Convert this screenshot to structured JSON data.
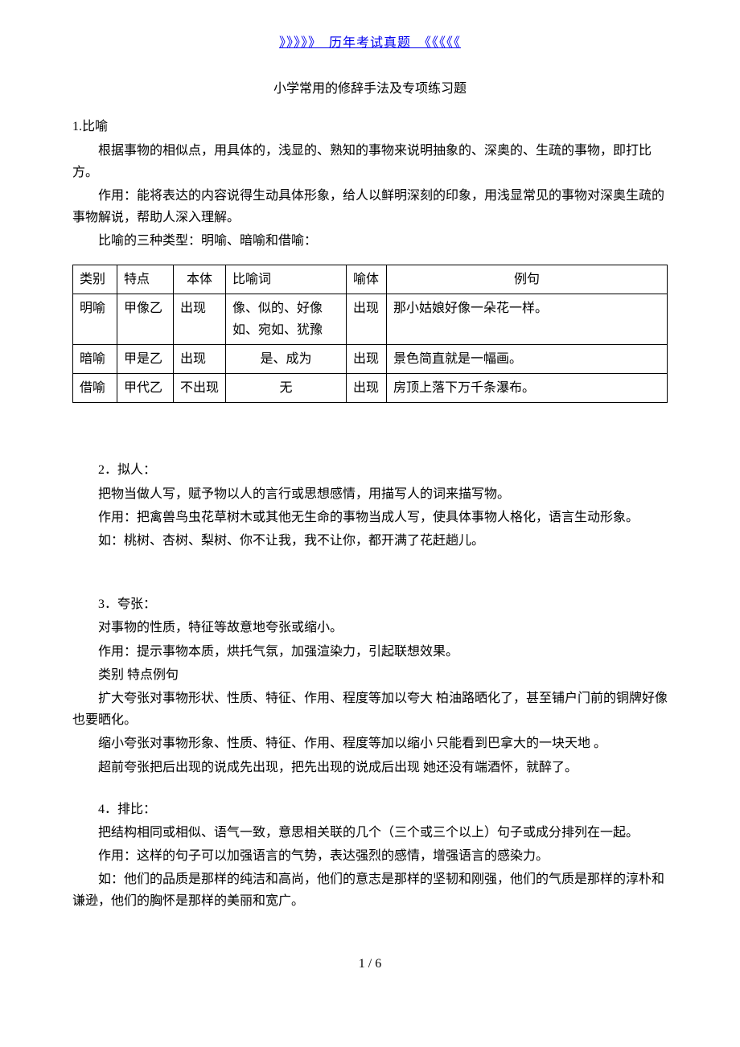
{
  "header": {
    "link_text": "》》》》》_历年考试真题_《《《《《"
  },
  "title": "小学常用的修辞手法及专项练习题",
  "section1": {
    "num": "1.比喻",
    "p1": "根据事物的相似点，用具体的，浅显的、熟知的事物来说明抽象的、深奥的、生疏的事物，即打比方。",
    "p2": "作用：能将表达的内容说得生动具体形象，给人以鲜明深刻的印象，用浅显常见的事物对深奥生疏的事物解说，帮助人深入理解。",
    "p3": "比喻的三种类型：明喻、暗喻和借喻："
  },
  "table": {
    "type": "table",
    "columns": [
      "类别",
      "特点",
      "本体",
      "比喻词",
      "喻体",
      "例句"
    ],
    "rows": [
      {
        "c1": "明喻",
        "c2": "甲像乙",
        "c3": "出现",
        "c4": "像、似的、好像如、宛如、犹豫",
        "c5": "出现",
        "c6": "那小姑娘好像一朵花一样。"
      },
      {
        "c1": "暗喻",
        "c2": "甲是乙",
        "c3": "出现",
        "c4": "是、成为",
        "c5": "出现",
        "c6": "景色简直就是一幅画。"
      },
      {
        "c1": "借喻",
        "c2": "甲代乙",
        "c3": "不出现",
        "c4": "无",
        "c5": "出现",
        "c6": "房顶上落下万千条瀑布。"
      }
    ]
  },
  "section2": {
    "num": "2．拟人：",
    "p1": "把物当做人写，赋予物以人的言行或思想感情，用描写人的词来描写物。",
    "p2": "作用：把禽兽鸟虫花草树木或其他无生命的事物当成人写，使具体事物人格化，语言生动形象。",
    "p3": "如：桃树、杏树、梨树、你不让我，我不让你，都开满了花赶趟儿。"
  },
  "section3": {
    "num": "3．夸张：",
    "p1": "对事物的性质，特征等故意地夸张或缩小。",
    "p2": "作用：提示事物本质，烘托气氛，加强渲染力，引起联想效果。",
    "p3": "类别 特点例句",
    "p4": "扩大夸张对事物形状、性质、特征、作用、程度等加以夸大 柏油路晒化了，甚至铺户门前的铜牌好像也要晒化。",
    "p5": "缩小夸张对事物形象、性质、特征、作用、程度等加以缩小 只能看到巴拿大的一块天地 。",
    "p6": "超前夸张把后出现的说成先出现，把先出现的说成后出现 她还没有端酒怀，就醉了。"
  },
  "section4": {
    "num": "4．排比：",
    "p1": "把结构相同或相似、语气一致，意思相关联的几个（三个或三个以上）句子或成分排列在一起。",
    "p2": "作用：这样的句子可以加强语言的气势，表达强烈的感情，增强语言的感染力。",
    "p3": "如：他们的品质是那样的纯洁和高尚，他们的意志是那样的坚韧和刚强，他们的气质是那样的淳朴和谦逊，他们的胸怀是那样的美丽和宽广。"
  },
  "footer": {
    "page_num": "1 / 6"
  }
}
